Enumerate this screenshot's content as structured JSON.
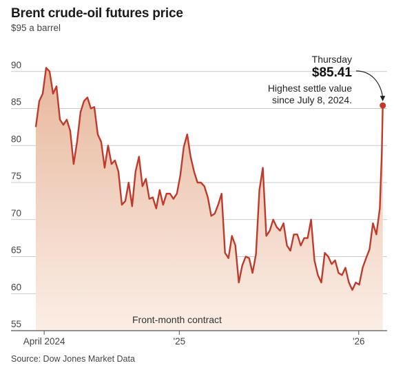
{
  "chart_data": {
    "type": "area",
    "title": "Brent crude-oil futures price",
    "ylabel": "$95 a barrel",
    "ylim": [
      55,
      95
    ],
    "yticks": [
      {
        "value": 95,
        "label": "$95 a barrel"
      },
      {
        "value": 90,
        "label": "90"
      },
      {
        "value": 85,
        "label": "85"
      },
      {
        "value": 80,
        "label": "80"
      },
      {
        "value": 75,
        "label": "75"
      },
      {
        "value": 70,
        "label": "70"
      },
      {
        "value": 65,
        "label": "65"
      },
      {
        "value": 60,
        "label": "60"
      },
      {
        "value": 55,
        "label": "55"
      }
    ],
    "xlim": [
      "2024-03-15",
      "2026-02-25"
    ],
    "xticks": [
      {
        "date": "2024-04-01",
        "label": "April 2024"
      },
      {
        "date": "2025-01-01",
        "label": "'25"
      },
      {
        "date": "2026-01-01",
        "label": "'26"
      }
    ],
    "grid": true,
    "annotation": {
      "date": "2026-02-19",
      "value": 85.41,
      "line1": "Thursday",
      "line2": "$85.41",
      "line3": "Highest settle value",
      "line4": "since July 8, 2024."
    },
    "inner_label": "Front-month contract",
    "source": "Source: Dow Jones Market Data",
    "colors": {
      "line": "#c0392b",
      "fill_top": "#e7b79c",
      "fill_bottom": "#fbeee6",
      "grid": "#bbbbbb"
    },
    "series": [
      {
        "x": [
          "2024-03-15",
          "2024-03-22",
          "2024-03-29",
          "2024-04-05",
          "2024-04-12",
          "2024-04-19",
          "2024-04-26",
          "2024-05-03",
          "2024-05-10",
          "2024-05-17",
          "2024-05-24",
          "2024-05-31",
          "2024-06-07",
          "2024-06-14",
          "2024-06-21",
          "2024-06-28",
          "2024-07-05",
          "2024-07-12",
          "2024-07-19",
          "2024-07-26",
          "2024-08-02",
          "2024-08-09",
          "2024-08-16",
          "2024-08-23",
          "2024-08-30",
          "2024-09-06",
          "2024-09-13",
          "2024-09-20",
          "2024-09-27",
          "2024-10-04",
          "2024-10-11",
          "2024-10-18",
          "2024-10-25",
          "2024-11-01",
          "2024-11-08",
          "2024-11-15",
          "2024-11-22",
          "2024-11-29",
          "2024-12-06",
          "2024-12-13",
          "2024-12-20",
          "2024-12-27",
          "2025-01-03",
          "2025-01-10",
          "2025-01-17",
          "2025-01-24",
          "2025-01-31",
          "2025-02-07",
          "2025-02-14",
          "2025-02-21",
          "2025-02-28",
          "2025-03-07",
          "2025-03-14",
          "2025-03-21",
          "2025-03-28",
          "2025-04-04",
          "2025-04-11",
          "2025-04-18",
          "2025-04-25",
          "2025-05-02",
          "2025-05-09",
          "2025-05-16",
          "2025-05-23",
          "2025-05-30",
          "2025-06-06",
          "2025-06-13",
          "2025-06-20",
          "2025-06-27",
          "2025-07-04",
          "2025-07-11",
          "2025-07-18",
          "2025-07-25",
          "2025-08-01",
          "2025-08-08",
          "2025-08-15",
          "2025-08-22",
          "2025-08-29",
          "2025-09-05",
          "2025-09-12",
          "2025-09-19",
          "2025-09-26",
          "2025-10-03",
          "2025-10-10",
          "2025-10-17",
          "2025-10-24",
          "2025-10-31",
          "2025-11-07",
          "2025-11-14",
          "2025-11-21",
          "2025-11-28",
          "2025-12-05",
          "2025-12-12",
          "2025-12-19",
          "2025-12-26",
          "2026-01-02",
          "2026-01-09",
          "2026-01-16",
          "2026-01-23",
          "2026-01-30",
          "2026-02-06",
          "2026-02-13",
          "2026-02-17",
          "2026-02-19"
        ],
        "values": [
          82.5,
          86.0,
          87.0,
          90.5,
          90.0,
          87.0,
          88.0,
          83.5,
          82.8,
          83.5,
          82.0,
          77.5,
          80.5,
          84.5,
          86.0,
          86.5,
          85.0,
          85.2,
          81.5,
          80.5,
          77.0,
          80.0,
          77.5,
          78.0,
          76.5,
          72.0,
          72.5,
          75.0,
          71.8,
          76.5,
          78.5,
          74.5,
          75.5,
          72.8,
          73.0,
          71.5,
          74.0,
          72.0,
          73.5,
          73.5,
          72.8,
          73.5,
          76.0,
          79.8,
          81.5,
          78.5,
          76.5,
          75.0,
          75.0,
          74.5,
          73.0,
          70.5,
          70.8,
          72.0,
          73.5,
          65.5,
          64.8,
          67.8,
          66.5,
          61.5,
          63.8,
          65.0,
          64.8,
          62.8,
          65.3,
          74.0,
          77.0,
          67.8,
          68.5,
          70.0,
          69.0,
          68.5,
          69.5,
          66.5,
          65.8,
          68.0,
          68.0,
          66.5,
          67.5,
          67.5,
          70.0,
          64.5,
          62.5,
          61.5,
          65.5,
          65.0,
          64.0,
          64.5,
          62.8,
          62.5,
          63.5,
          61.5,
          60.5,
          61.5,
          61.2,
          63.5,
          64.8,
          66.0,
          69.5,
          68.0,
          71.5,
          79.0,
          85.41
        ]
      }
    ]
  }
}
